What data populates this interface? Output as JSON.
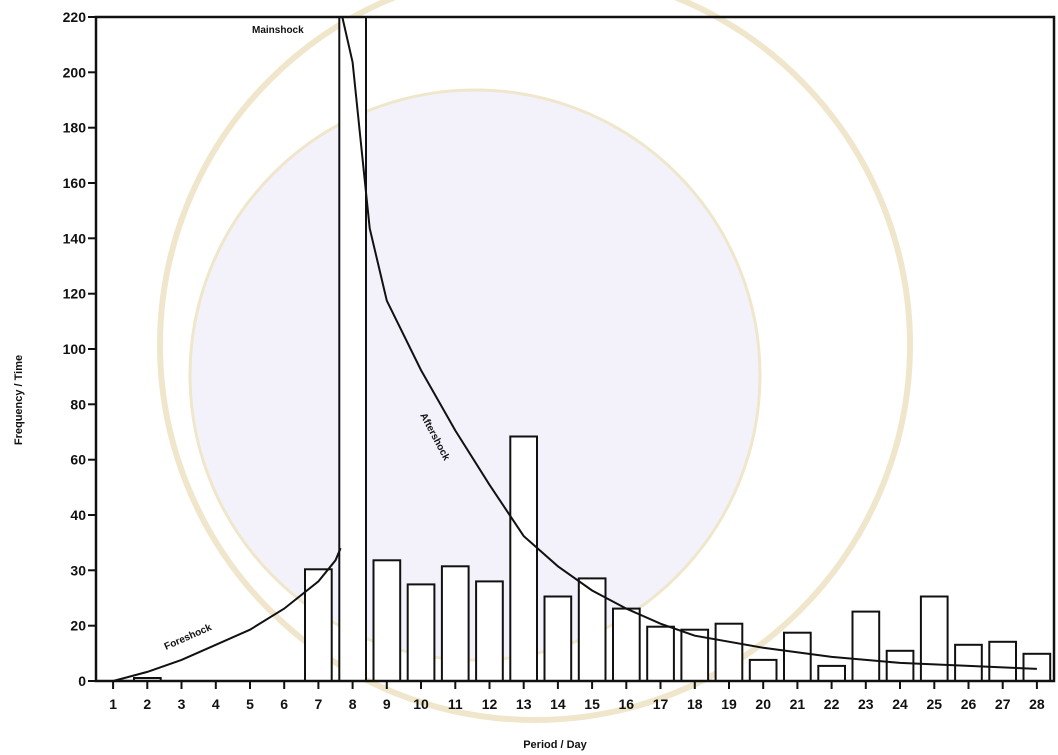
{
  "chart_data": {
    "type": "bar",
    "xlabel": "Period / Day",
    "ylabel": "Frequency / Time",
    "categories": [
      "1",
      "2",
      "3",
      "4",
      "5",
      "6",
      "7",
      "8",
      "9",
      "10",
      "11",
      "12",
      "13",
      "14",
      "15",
      "16",
      "17",
      "18",
      "19",
      "20",
      "21",
      "22",
      "23",
      "24",
      "25",
      "26",
      "27",
      "28"
    ],
    "y_tick_labels": [
      "0",
      "20",
      "30",
      "40",
      "60",
      "80",
      "100",
      "120",
      "140",
      "160",
      "180",
      "200",
      "220"
    ],
    "values": [
      0,
      1,
      0,
      0,
      0,
      0,
      37,
      220,
      40,
      32,
      38,
      33,
      81,
      28,
      34,
      24,
      18,
      17,
      19,
      7,
      16,
      5,
      23,
      10,
      28,
      12,
      13,
      9
    ],
    "ylim": [
      0,
      220
    ],
    "grid": false,
    "annotations": {
      "mainshock": "Mainshock",
      "aftershock": "Aftershock",
      "foreshock": "Foreshock"
    },
    "curves": {
      "foreshock": {
        "x": [
          1,
          2,
          3,
          4,
          5,
          6,
          7,
          7.5,
          7.65
        ],
        "y": [
          0,
          3,
          7,
          12,
          17,
          24,
          33,
          40,
          44
        ]
      },
      "aftershock": {
        "x": [
          7.7,
          8,
          8.5,
          9,
          10,
          11,
          12,
          13,
          14,
          15,
          16,
          17,
          18,
          20,
          22,
          24,
          26,
          28
        ],
        "y": [
          220,
          205,
          150,
          126,
          103,
          83,
          65,
          48,
          38,
          30,
          24,
          19,
          15,
          11,
          8,
          6,
          5,
          4
        ]
      }
    }
  }
}
